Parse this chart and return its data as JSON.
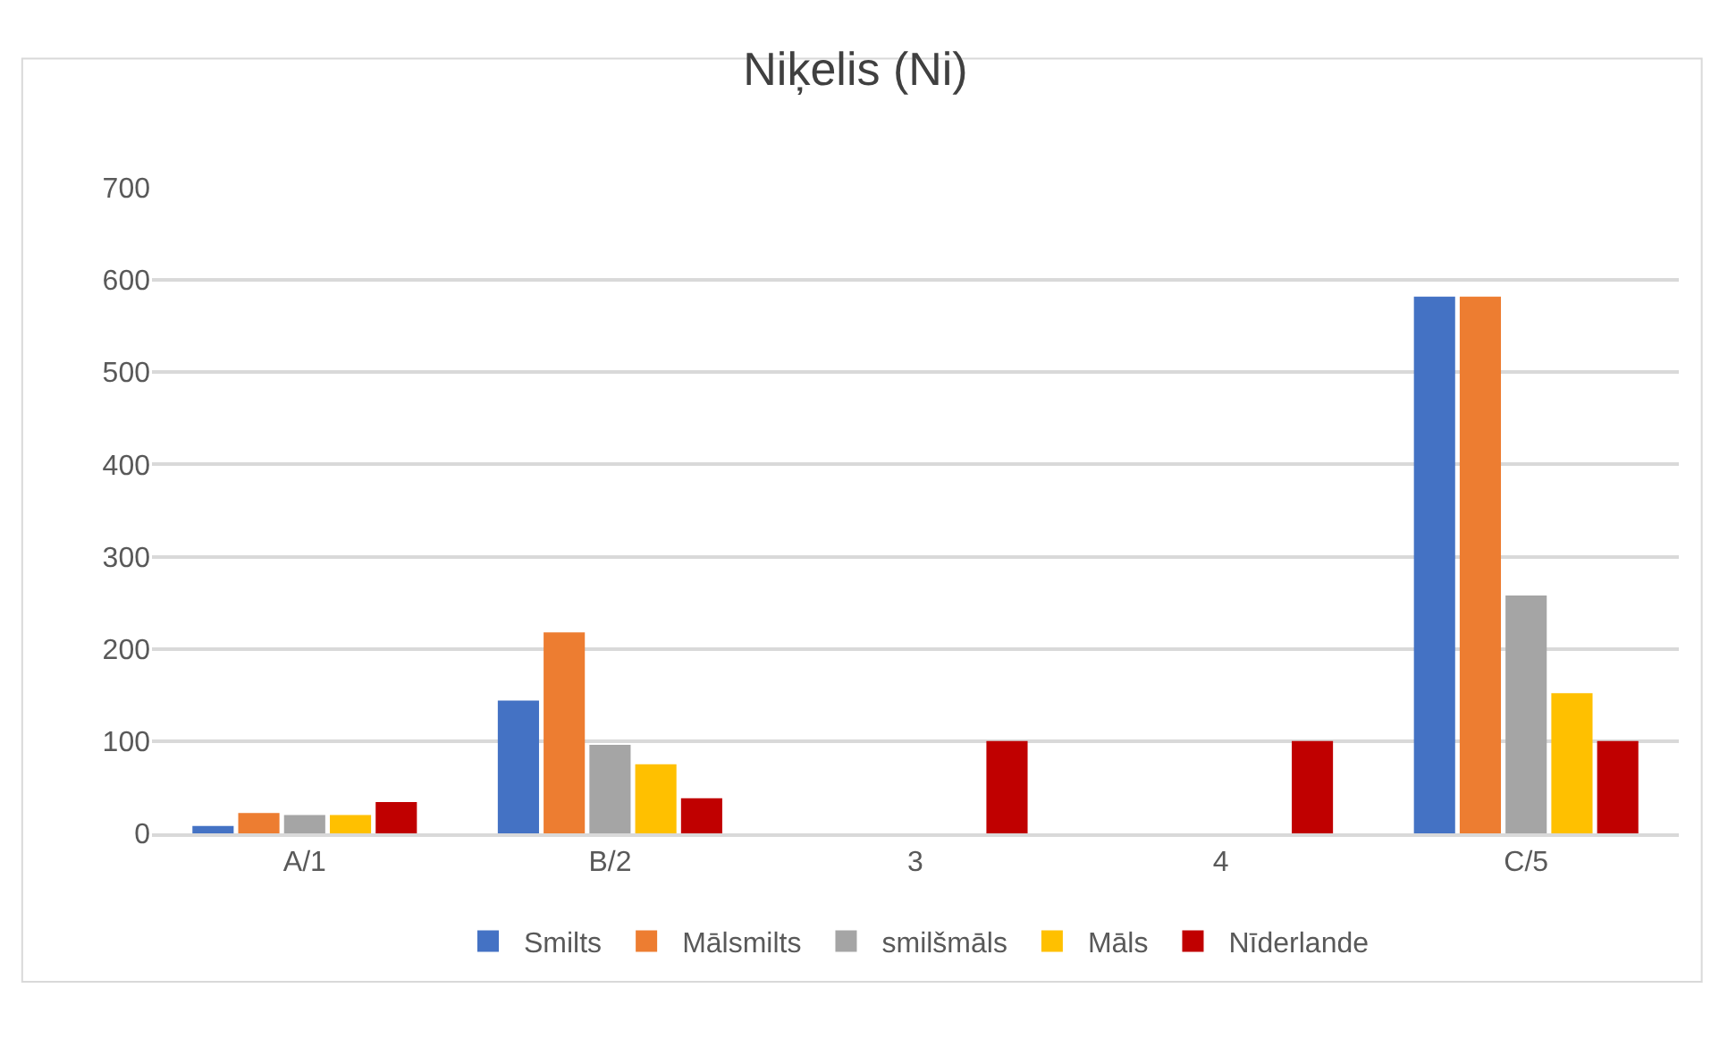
{
  "chart_data": {
    "type": "bar",
    "title": "Niķelis (Ni)",
    "categories": [
      "A/1",
      "B/2",
      "3",
      "4",
      "C/5"
    ],
    "series": [
      {
        "name": "Smilts",
        "color": "#4472c4",
        "values": [
          8,
          144,
          null,
          null,
          582
        ]
      },
      {
        "name": "Mālsmilts",
        "color": "#ed7d31",
        "values": [
          22,
          218,
          null,
          null,
          582
        ]
      },
      {
        "name": "smilšmāls",
        "color": "#a5a5a5",
        "values": [
          20,
          96,
          null,
          null,
          258
        ]
      },
      {
        "name": "Māls",
        "color": "#ffc000",
        "values": [
          20,
          75,
          null,
          null,
          152
        ]
      },
      {
        "name": "Nīderlande",
        "color": "#c00000",
        "values": [
          34,
          38,
          100,
          100,
          100
        ]
      }
    ],
    "ylim": [
      0,
      700
    ],
    "yticks": [
      0,
      100,
      200,
      300,
      400,
      500,
      600,
      700
    ],
    "grid": "y",
    "legend": "bottom"
  }
}
